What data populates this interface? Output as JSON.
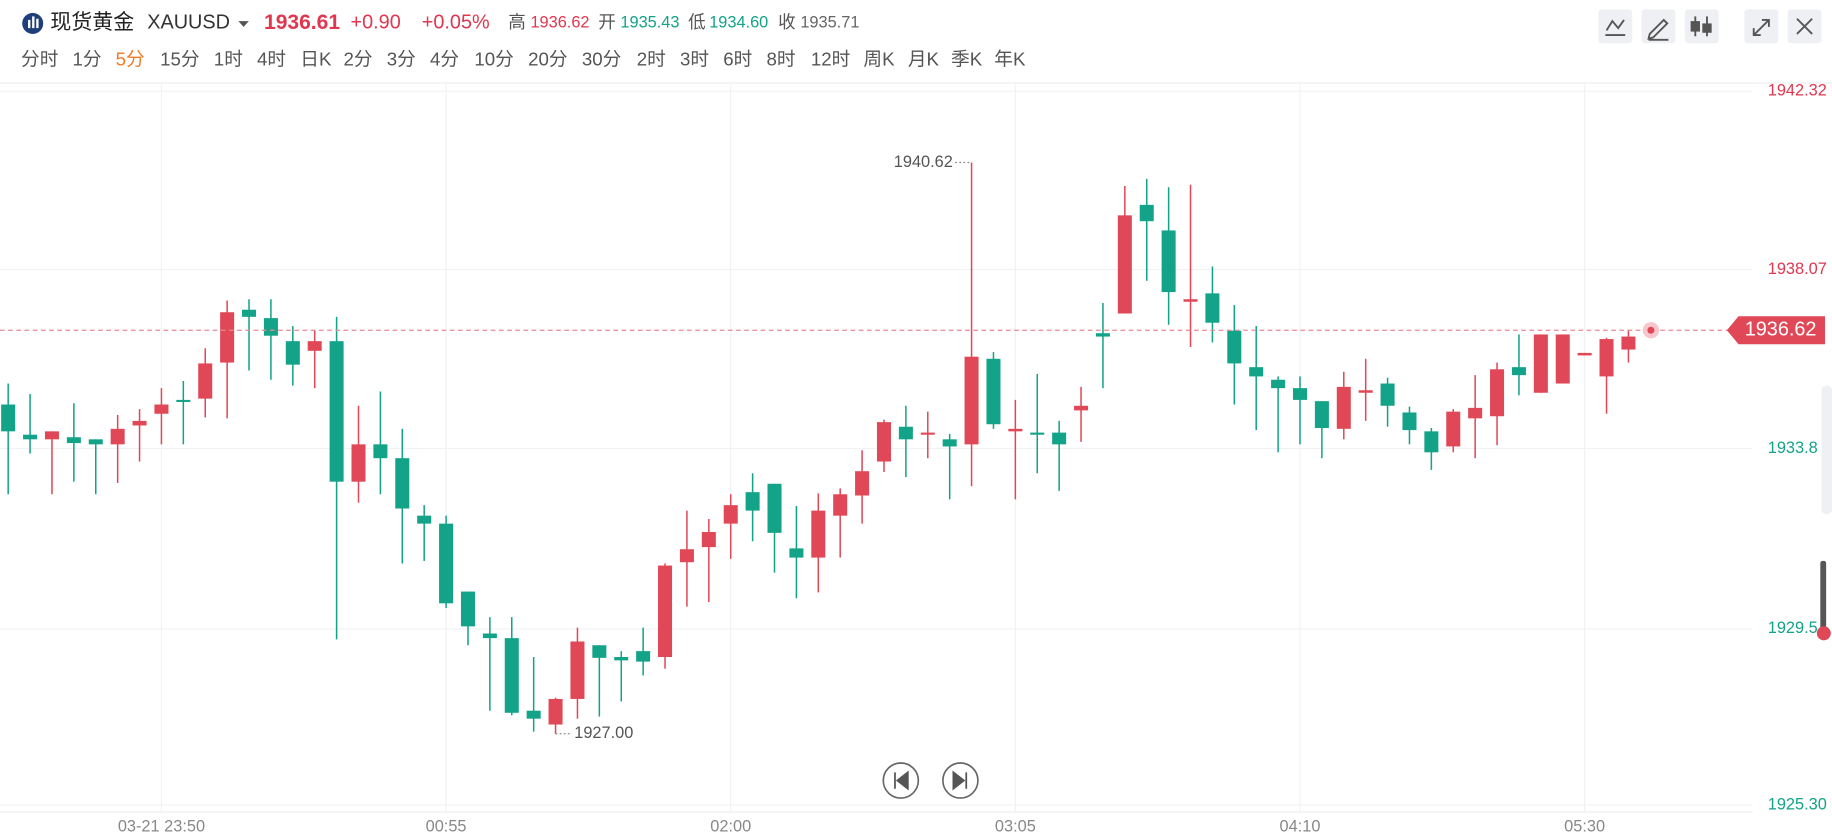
{
  "header": {
    "name": "现货黄金",
    "symbol": "XAUUSD",
    "price": "1936.61",
    "change": "+0.90",
    "change_pct": "+0.05%",
    "high_label": "高",
    "high": "1936.62",
    "open_label": "开",
    "open": "1935.43",
    "low_label": "低",
    "low": "1934.60",
    "close_label": "收",
    "close": "1935.71"
  },
  "tabs": [
    "分时",
    "1分",
    "5分",
    "15分",
    "1时",
    "4时",
    "日K",
    "2分",
    "3分",
    "4分",
    "10分",
    "20分",
    "30分",
    "2时",
    "3时",
    "6时",
    "8时",
    "12时",
    "周K",
    "月K",
    "季K",
    "年K"
  ],
  "active_tab": 2,
  "chart_data": {
    "type": "candlestick",
    "up_color": "#e04857",
    "down_color": "#13a388",
    "categories": [
      null,
      null,
      null,
      null,
      null,
      null,
      null,
      "03-21 23:50",
      null,
      null,
      null,
      null,
      null,
      null,
      null,
      null,
      null,
      null,
      null,
      null,
      "00:55",
      null,
      null,
      null,
      null,
      null,
      null,
      null,
      null,
      null,
      null,
      null,
      null,
      "02:00",
      null,
      null,
      null,
      null,
      null,
      null,
      null,
      null,
      null,
      null,
      null,
      null,
      "03:05",
      null,
      null,
      null,
      null,
      null,
      null,
      null,
      null,
      null,
      null,
      null,
      null,
      "04:10",
      null,
      null,
      null,
      null,
      null,
      null,
      null,
      null,
      null,
      null,
      null,
      null,
      "05:30",
      null,
      null
    ],
    "open": [
      1934.85,
      1934.13,
      1934.02,
      1934.07,
      1934.02,
      1933.9,
      1934.35,
      1934.63,
      1934.96,
      1934.99,
      1935.85,
      1937.11,
      1936.91,
      1936.36,
      1936.13,
      1936.36,
      1933.01,
      1933.9,
      1933.57,
      1932.2,
      1932.01,
      1930.39,
      1929.39,
      1929.28,
      1927.55,
      1927.22,
      1927.83,
      1929.11,
      1928.83,
      1928.97,
      1928.83,
      1931.09,
      1931.45,
      1932.01,
      1932.76,
      1932.96,
      1931.42,
      1931.2,
      1932.2,
      1932.68,
      1933.49,
      1934.32,
      1934.13,
      1934.02,
      1933.9,
      1935.94,
      1934.21,
      1934.18,
      1934.18,
      1934.71,
      1936.55,
      1937.02,
      1939.61,
      1939.0,
      1937.3,
      1937.5,
      1936.61,
      1935.74,
      1935.44,
      1935.24,
      1934.93,
      1934.27,
      1935.13,
      1935.35,
      1934.66,
      1934.21,
      1933.85,
      1934.52,
      1934.57,
      1935.74,
      1935.13,
      1935.35,
      1936.02,
      1935.52,
      1936.16
    ],
    "close": [
      1934.21,
      1934.02,
      1934.21,
      1933.93,
      1933.9,
      1934.27,
      1934.46,
      1934.85,
      1934.91,
      1935.83,
      1937.05,
      1936.94,
      1936.49,
      1935.8,
      1936.36,
      1933.01,
      1933.9,
      1933.57,
      1932.37,
      1932.01,
      1930.11,
      1929.56,
      1929.28,
      1927.5,
      1927.36,
      1927.83,
      1929.2,
      1928.81,
      1928.75,
      1928.72,
      1931.01,
      1931.4,
      1931.81,
      1932.45,
      1932.32,
      1931.79,
      1931.2,
      1932.32,
      1932.71,
      1933.26,
      1934.43,
      1934.02,
      1934.18,
      1933.85,
      1935.99,
      1934.38,
      1934.27,
      1934.13,
      1933.9,
      1934.82,
      1936.47,
      1939.36,
      1939.22,
      1937.53,
      1937.36,
      1936.8,
      1935.83,
      1935.52,
      1935.24,
      1934.96,
      1934.29,
      1935.27,
      1935.19,
      1934.82,
      1934.24,
      1933.71,
      1934.68,
      1934.77,
      1935.69,
      1935.55,
      1936.52,
      1936.52,
      1936.08,
      1936.41,
      1936.47
    ],
    "high": [
      1935.35,
      1935.1,
      1934.21,
      1934.88,
      1934.02,
      1934.6,
      1934.74,
      1935.24,
      1935.41,
      1936.19,
      1937.33,
      1937.36,
      1937.36,
      1936.72,
      1936.63,
      1936.94,
      1934.82,
      1935.16,
      1934.27,
      1932.45,
      1932.2,
      1930.39,
      1929.78,
      1929.78,
      1928.83,
      1927.86,
      1929.53,
      1929.11,
      1928.97,
      1929.53,
      1931.06,
      1932.32,
      1932.12,
      1932.71,
      1933.21,
      1932.96,
      1932.43,
      1932.73,
      1932.85,
      1933.76,
      1934.49,
      1934.82,
      1934.68,
      1934.15,
      1940.62,
      1936.1,
      1934.96,
      1935.58,
      1934.46,
      1935.27,
      1937.27,
      1940.06,
      1940.23,
      1940.03,
      1940.09,
      1938.14,
      1937.22,
      1936.72,
      1935.52,
      1935.52,
      1934.93,
      1935.63,
      1935.94,
      1935.49,
      1934.8,
      1934.29,
      1934.74,
      1935.55,
      1935.85,
      1936.52,
      1936.52,
      1936.52,
      1936.08,
      1936.44,
      1936.63
    ],
    "low": [
      1932.71,
      1933.68,
      1932.71,
      1933.01,
      1932.71,
      1932.98,
      1933.49,
      1933.9,
      1933.9,
      1934.54,
      1934.52,
      1935.66,
      1935.44,
      1935.3,
      1935.24,
      1929.25,
      1932.51,
      1932.71,
      1931.06,
      1931.12,
      1930.0,
      1929.11,
      1927.55,
      1927.44,
      1927.05,
      1927.0,
      1927.36,
      1927.41,
      1927.77,
      1928.39,
      1928.55,
      1930.03,
      1930.14,
      1931.17,
      1931.59,
      1930.84,
      1930.23,
      1930.37,
      1931.2,
      1932.01,
      1933.24,
      1933.12,
      1933.57,
      1932.59,
      1932.9,
      1934.27,
      1932.59,
      1933.21,
      1932.79,
      1933.96,
      1935.24,
      1937.02,
      1937.8,
      1936.75,
      1936.22,
      1936.33,
      1934.85,
      1934.24,
      1933.71,
      1933.9,
      1933.57,
      1934.02,
      1934.46,
      1934.32,
      1933.9,
      1933.29,
      1933.71,
      1933.57,
      1933.88,
      1935.07,
      1935.13,
      1935.35,
      1936.02,
      1934.63,
      1935.85
    ],
    "ylim": [
      1925.3,
      1942.32
    ],
    "yticks": [
      1942.32,
      1938.07,
      1933.8,
      1929.5,
      {
        "value": 1925.3,
        "label": "1925.30"
      }
    ],
    "grid": true,
    "last_price": 1936.62,
    "max_label": 1940.62,
    "min_label": {
      "value": 1927,
      "label": "1927.00"
    }
  }
}
